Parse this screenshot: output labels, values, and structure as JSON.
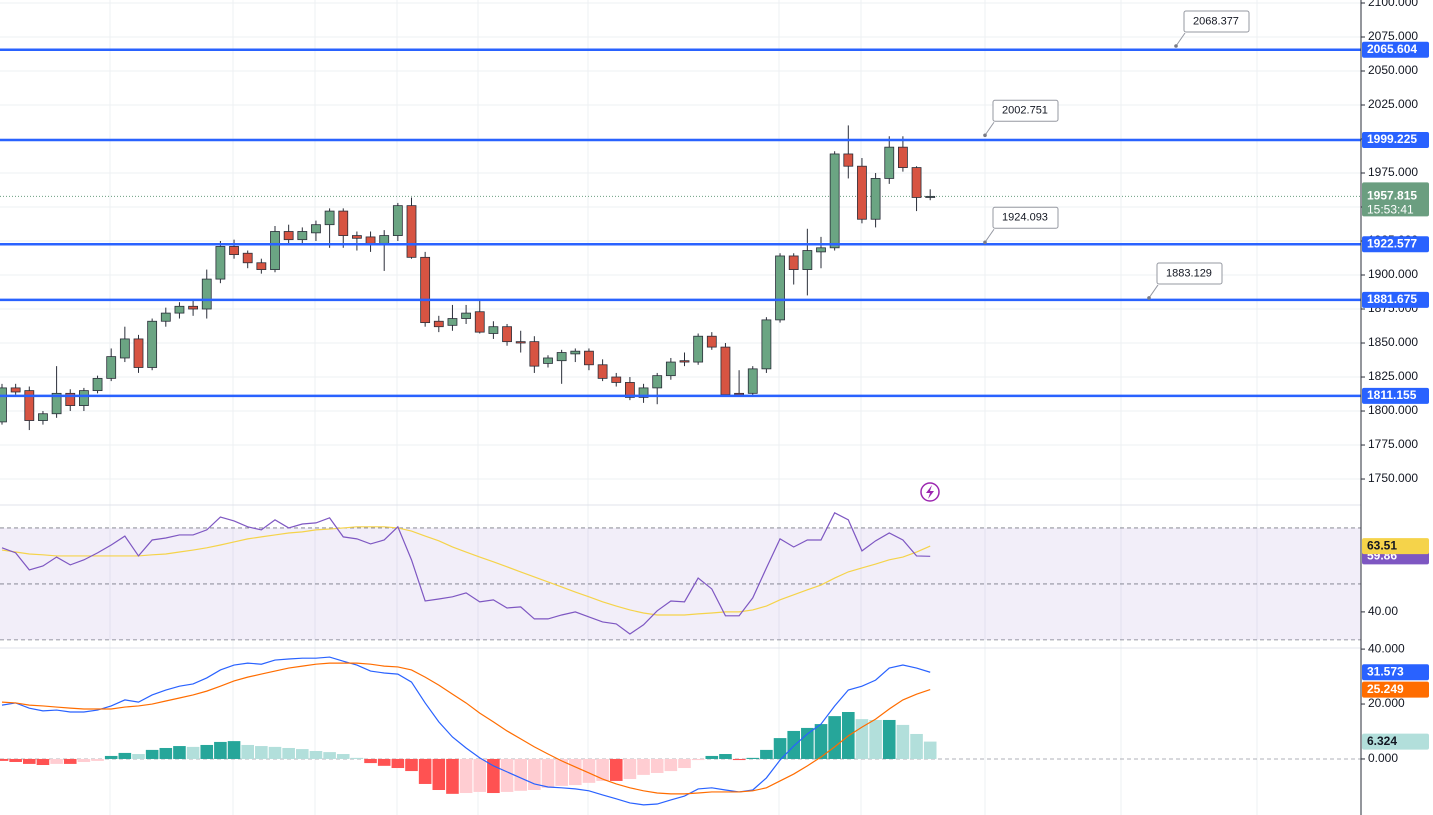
{
  "chart_data": [
    {
      "type": "candlestick",
      "open": [
        1792,
        1817,
        1815,
        1793,
        1798,
        1813,
        1804,
        1815,
        1824,
        1839,
        1853,
        1832,
        1866,
        1872,
        1877,
        1875,
        1897,
        1921,
        1916,
        1909,
        1904,
        1932,
        1926,
        1931,
        1937,
        1947,
        1929,
        1928,
        1923,
        1929,
        1951,
        1913,
        1866,
        1863,
        1868,
        1873,
        1857,
        1862,
        1851,
        1851,
        1835,
        1837,
        1842,
        1844,
        1834,
        1825,
        1821,
        1810,
        1817,
        1826,
        1837,
        1836,
        1855,
        1847,
        1813,
        1813,
        1831,
        1867,
        1914,
        1904,
        1917,
        1920,
        1989,
        1980,
        1941,
        1971,
        1994,
        1979,
        1957
      ],
      "high": [
        1820,
        1820,
        1818,
        1800,
        1833,
        1816,
        1817,
        1826,
        1846,
        1862,
        1856,
        1868,
        1876,
        1880,
        1882,
        1904,
        1925,
        1926,
        1918,
        1912,
        1936,
        1937,
        1935,
        1940,
        1949,
        1949,
        1932,
        1932,
        1933,
        1953,
        1957,
        1917,
        1870,
        1878,
        1878,
        1882,
        1866,
        1864,
        1859,
        1855,
        1841,
        1845,
        1846,
        1846,
        1838,
        1828,
        1825,
        1820,
        1828,
        1839,
        1843,
        1857,
        1858,
        1850,
        1830,
        1833,
        1869,
        1916,
        1916,
        1934,
        1928,
        1991,
        2010,
        1986,
        1975,
        2002,
        2002,
        1980,
        1963
      ],
      "low": [
        1790,
        1812,
        1786,
        1790,
        1795,
        1800,
        1800,
        1813,
        1822,
        1836,
        1828,
        1830,
        1862,
        1868,
        1870,
        1868,
        1894,
        1912,
        1905,
        1901,
        1902,
        1922,
        1922,
        1925,
        1920,
        1920,
        1918,
        1917,
        1903,
        1925,
        1912,
        1862,
        1858,
        1859,
        1864,
        1857,
        1853,
        1848,
        1843,
        1828,
        1832,
        1820,
        1836,
        1830,
        1822,
        1818,
        1808,
        1806,
        1805,
        1823,
        1833,
        1834,
        1845,
        1811,
        1811,
        1811,
        1828,
        1865,
        1893,
        1885,
        1905,
        1918,
        1971,
        1938,
        1935,
        1967,
        1976,
        1947,
        1955
      ],
      "close": [
        1817,
        1814,
        1793,
        1798,
        1813,
        1804,
        1815,
        1824,
        1840,
        1853,
        1832,
        1866,
        1872,
        1877,
        1875,
        1897,
        1921,
        1915,
        1909,
        1904,
        1932,
        1926,
        1932,
        1937,
        1947,
        1929,
        1927,
        1923,
        1929,
        1951,
        1913,
        1865,
        1862,
        1868,
        1872,
        1858,
        1862,
        1851,
        1850,
        1833,
        1839,
        1843,
        1844,
        1834,
        1824,
        1821,
        1810,
        1817,
        1826,
        1836,
        1836,
        1855,
        1847,
        1812,
        1812,
        1831,
        1867,
        1914,
        1904,
        1918,
        1920,
        1989,
        1980,
        1941,
        1971,
        1994,
        1979,
        1957,
        1957.815
      ],
      "up_color": "#6ba583",
      "down_color": "#d75442",
      "last_color": "#6b9e80",
      "ylim": [
        1730.9,
        2102.2
      ],
      "yticks": [
        {
          "value": 1750,
          "label": "1750.000"
        },
        {
          "value": 1775,
          "label": "1775.000"
        },
        {
          "value": 1800,
          "label": "1800.000"
        },
        {
          "value": 1825,
          "label": "1825.000"
        },
        {
          "value": 1850,
          "label": "1850.000"
        },
        {
          "value": 1875,
          "label": "1875.000"
        },
        {
          "value": 1900,
          "label": "1900.000"
        },
        {
          "value": 1925,
          "label": "1925.000"
        },
        {
          "value": 1950,
          "label": "1950.000"
        },
        {
          "value": 1975,
          "label": "1975.000"
        },
        {
          "value": 2000,
          "label": "2000.000"
        },
        {
          "value": 2025,
          "label": "2025.000"
        },
        {
          "value": 2050,
          "label": "2050.000"
        },
        {
          "value": 2075,
          "label": "2075.000"
        },
        {
          "value": 2100,
          "label": "2100.000"
        }
      ],
      "levels": [
        2065.604,
        1999.225,
        1922.577,
        1881.675,
        1811.155
      ],
      "level_color": "#2962ff",
      "callouts": [
        2068.377,
        2002.751,
        1924.093,
        1883.129
      ],
      "countdown": "15:53:41",
      "grid": true
    },
    {
      "type": "rsi",
      "series": [
        {
          "color": "#7e57c2",
          "values": [
            62.9,
            61.1,
            55.0,
            56.4,
            59.6,
            56.8,
            58.6,
            61.1,
            63.9,
            67.1,
            60.0,
            65.7,
            66.4,
            67.5,
            67.5,
            69.3,
            73.9,
            72.5,
            70.4,
            69.3,
            72.9,
            70.0,
            71.4,
            71.8,
            73.6,
            66.8,
            66.1,
            64.3,
            65.7,
            70.4,
            58.6,
            43.9,
            44.6,
            45.4,
            46.8,
            43.6,
            44.3,
            41.4,
            41.8,
            37.5,
            37.5,
            38.9,
            40.0,
            38.2,
            36.4,
            35.7,
            32.1,
            35.4,
            40.4,
            43.9,
            43.6,
            52.1,
            48.2,
            38.6,
            38.6,
            45.0,
            55.7,
            66.1,
            63.2,
            65.7,
            65.7,
            75.4,
            72.9,
            61.8,
            65.4,
            68.2,
            65.7,
            60.0,
            59.86
          ]
        },
        {
          "color": "#f5d34a",
          "values": [
            62.1,
            61.4,
            60.7,
            60.4,
            60.0,
            60.0,
            60.0,
            60.0,
            60.0,
            60.0,
            60.0,
            60.4,
            60.7,
            61.4,
            62.1,
            62.9,
            63.9,
            65.0,
            66.1,
            66.8,
            67.5,
            68.2,
            68.6,
            69.3,
            69.6,
            70.0,
            70.4,
            70.4,
            70.4,
            70.0,
            68.9,
            67.1,
            65.4,
            63.2,
            61.4,
            59.6,
            57.9,
            56.1,
            54.3,
            52.5,
            50.7,
            48.9,
            47.1,
            45.4,
            43.6,
            42.1,
            40.7,
            39.6,
            38.9,
            38.9,
            38.9,
            39.3,
            39.6,
            40.0,
            40.0,
            40.7,
            42.1,
            44.3,
            46.1,
            47.9,
            49.6,
            52.1,
            54.3,
            55.7,
            57.1,
            58.6,
            59.6,
            61.4,
            63.51
          ]
        }
      ],
      "ylim": [
        27.1,
        78.2
      ],
      "yticks": [
        {
          "value": 40,
          "label": "40.00"
        }
      ],
      "levels": [
        70,
        50,
        30
      ],
      "band_color": "#7e57c2"
    },
    {
      "type": "macd",
      "series": [
        {
          "color": "#2962ff",
          "values": [
            19.6,
            20.4,
            18.5,
            17.5,
            17.8,
            17.1,
            17.1,
            17.8,
            19.3,
            21.5,
            20.7,
            23.3,
            25.1,
            26.5,
            27.3,
            29.5,
            32.4,
            34.2,
            34.9,
            34.5,
            36.0,
            36.4,
            36.7,
            36.7,
            37.1,
            35.6,
            34.2,
            32.0,
            31.3,
            30.9,
            28.0,
            20.4,
            13.5,
            8.0,
            4.0,
            0.4,
            -2.5,
            -4.7,
            -6.9,
            -9.1,
            -10.2,
            -10.5,
            -10.9,
            -11.6,
            -13.1,
            -14.5,
            -16.0,
            -16.7,
            -16.4,
            -14.9,
            -13.5,
            -10.9,
            -10.5,
            -11.3,
            -12.0,
            -11.3,
            -6.9,
            -0.4,
            4.7,
            9.1,
            12.7,
            19.3,
            25.1,
            26.5,
            28.7,
            33.1,
            34.2,
            33.1,
            31.573
          ]
        },
        {
          "color": "#ff6d00",
          "values": [
            20.7,
            20.4,
            19.6,
            19.3,
            18.9,
            18.5,
            18.2,
            18.2,
            18.2,
            18.9,
            19.3,
            20.0,
            21.1,
            22.2,
            23.3,
            24.7,
            26.5,
            28.4,
            29.8,
            30.9,
            32.0,
            33.1,
            33.8,
            34.5,
            34.9,
            34.9,
            34.9,
            34.5,
            33.8,
            33.5,
            32.4,
            29.8,
            26.9,
            23.6,
            20.4,
            16.7,
            13.5,
            10.2,
            7.3,
            4.4,
            1.8,
            -0.7,
            -2.9,
            -5.1,
            -7.3,
            -9.1,
            -10.5,
            -11.6,
            -12.4,
            -12.7,
            -12.7,
            -12.4,
            -12.0,
            -12.0,
            -12.0,
            -11.6,
            -10.5,
            -8.0,
            -5.5,
            -2.5,
            0.7,
            4.4,
            8.4,
            11.6,
            14.5,
            18.2,
            21.5,
            23.6,
            25.249
          ]
        }
      ],
      "histogram": {
        "colors": [
          "#26a69a",
          "#b2dfdb",
          "#ff5252",
          "#ffcdd2"
        ],
        "values": [
          -0.7,
          -1.1,
          -1.8,
          -2.2,
          -1.8,
          -1.8,
          -1.1,
          -0.7,
          1.1,
          2.2,
          1.8,
          3.3,
          4.0,
          4.7,
          4.4,
          5.1,
          6.2,
          6.5,
          5.1,
          4.7,
          4.4,
          4.0,
          3.6,
          2.9,
          2.5,
          1.8,
          0.4,
          -1.5,
          -2.5,
          -3.3,
          -4.4,
          -9.1,
          -11.3,
          -12.7,
          -12.4,
          -12.0,
          -12.4,
          -12.0,
          -11.6,
          -11.3,
          -10.5,
          -9.8,
          -9.5,
          -8.7,
          -8.0,
          -8.0,
          -7.3,
          -5.8,
          -5.1,
          -4.4,
          -3.3,
          -0.4,
          1.1,
          1.8,
          -0.4,
          0.4,
          3.3,
          7.6,
          10.2,
          11.3,
          12.7,
          15.6,
          17.1,
          14.5,
          14.2,
          14.2,
          12.4,
          9.1,
          6.324
        ]
      },
      "ylim": [
        -20.4,
        40.4
      ],
      "yticks": [
        {
          "value": 0,
          "label": "0.000"
        },
        {
          "value": 20,
          "label": "20.000"
        },
        {
          "value": 40,
          "label": "40.000"
        }
      ]
    }
  ]
}
